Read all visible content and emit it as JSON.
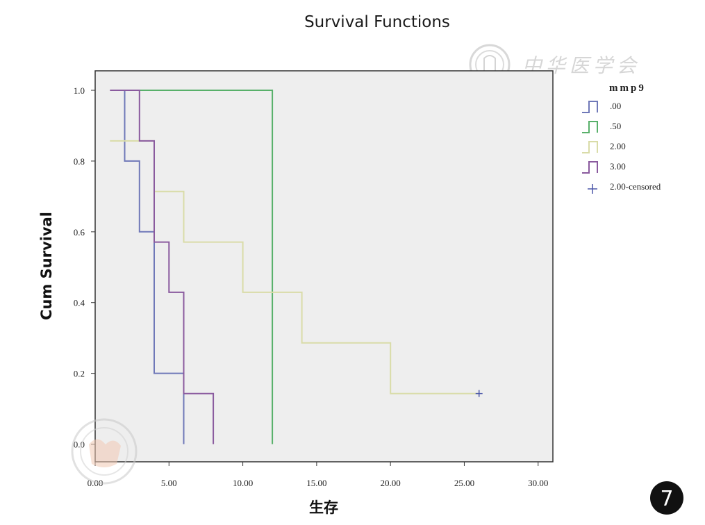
{
  "chart_data": {
    "type": "line",
    "subtype": "kaplan-meier step",
    "title": "Survival Functions",
    "xlabel": "生存",
    "ylabel": "Cum Survival",
    "xlim": [
      0,
      31
    ],
    "ylim": [
      -0.05,
      1.055
    ],
    "xticks": [
      0,
      5,
      10,
      15,
      20,
      25,
      30
    ],
    "xtick_labels": [
      "0.00",
      "5.00",
      "10.00",
      "15.00",
      "20.00",
      "25.00",
      "30.00"
    ],
    "yticks": [
      0,
      0.2,
      0.4,
      0.6,
      0.8,
      1.0
    ],
    "ytick_labels": [
      "0.0",
      "0.2",
      "0.4",
      "0.6",
      "0.8",
      "1.0"
    ],
    "grid": false,
    "plot_background": "#eeeeee",
    "legend": {
      "title": "mmp9",
      "placement": "right"
    },
    "series": [
      {
        "name": ".00",
        "color": "#6f78b8",
        "x": [
          2,
          2,
          3,
          3,
          4,
          4,
          6,
          6
        ],
        "y": [
          1.0,
          0.8,
          0.8,
          0.6,
          0.6,
          0.2,
          0.2,
          0.0
        ]
      },
      {
        "name": ".50",
        "color": "#58b06a",
        "x": [
          2,
          12,
          12
        ],
        "y": [
          1.0,
          1.0,
          0.0
        ]
      },
      {
        "name": "2.00",
        "color": "#d9dca8",
        "x": [
          1,
          2,
          2,
          4,
          4,
          6,
          6,
          10,
          10,
          14,
          14,
          20,
          20,
          26
        ],
        "y": [
          0.857,
          0.857,
          0.857,
          0.857,
          0.714,
          0.714,
          0.571,
          0.571,
          0.429,
          0.429,
          0.286,
          0.286,
          0.143,
          0.143
        ]
      },
      {
        "name": "3.00",
        "color": "#8a5a9e",
        "x": [
          1,
          3,
          3,
          4,
          4,
          5,
          5,
          6,
          6,
          8,
          8
        ],
        "y": [
          1.0,
          1.0,
          0.857,
          0.857,
          0.571,
          0.571,
          0.429,
          0.429,
          0.143,
          0.143,
          0.0
        ]
      }
    ],
    "censored": [
      {
        "name": "2.00-censored",
        "color": "#4a56a8",
        "points": [
          {
            "x": 26,
            "y": 0.143
          }
        ]
      }
    ]
  },
  "watermark": {
    "text": "中华医学会"
  },
  "figure_number": "7"
}
